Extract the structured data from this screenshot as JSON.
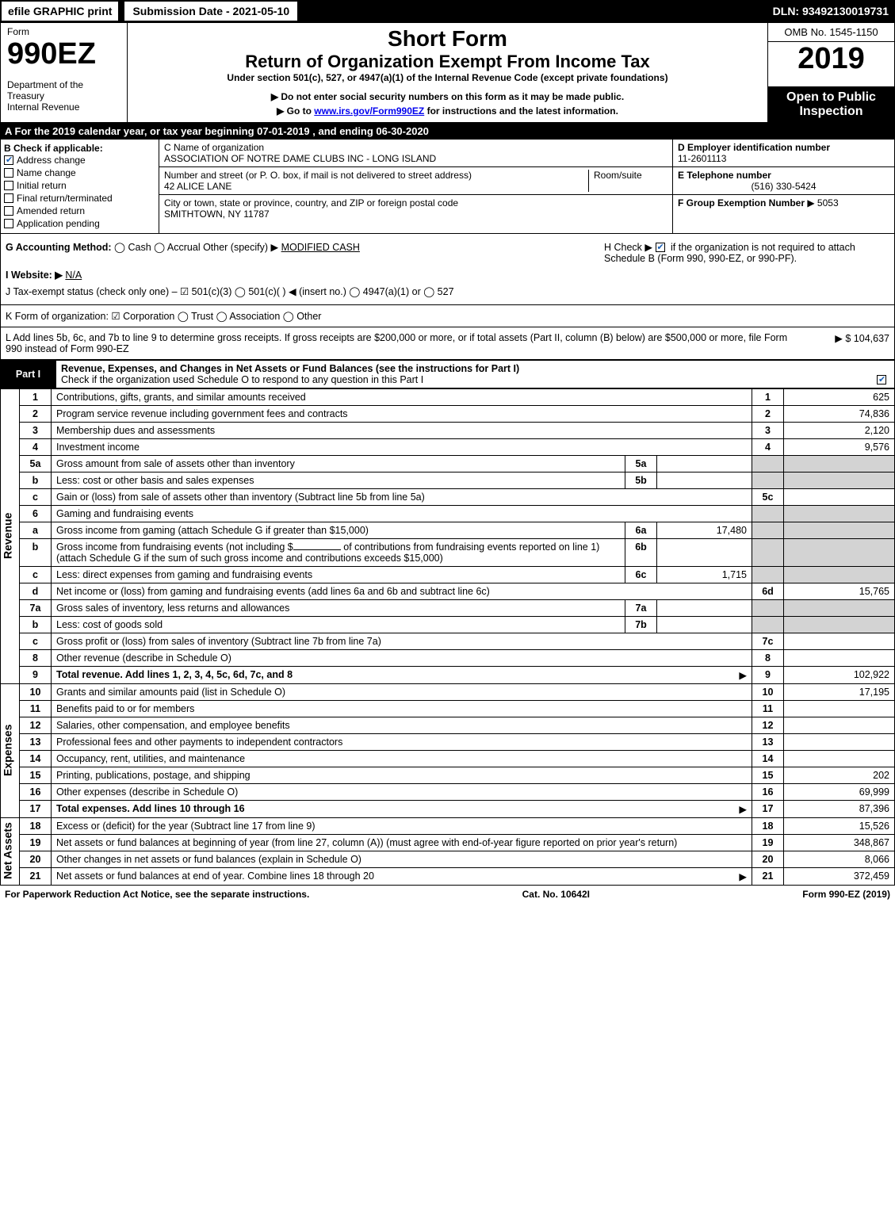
{
  "topbar": {
    "efile": "efile GRAPHIC print",
    "submission": "Submission Date - 2021-05-10",
    "dln": "DLN: 93492130019731"
  },
  "header": {
    "form_label": "Form",
    "form_number": "990EZ",
    "dept": "Department of the Treasury",
    "irs": "Internal Revenue",
    "short_form": "Short Form",
    "return_title": "Return of Organization Exempt From Income Tax",
    "under_section": "Under section 501(c), 527, or 4947(a)(1) of the Internal Revenue Code (except private foundations)",
    "instruction1": "▶ Do not enter social security numbers on this form as it may be made public.",
    "instruction2_pre": "▶ Go to ",
    "instruction2_link": "www.irs.gov/Form990EZ",
    "instruction2_post": " for instructions and the latest information.",
    "omb": "OMB No. 1545-1150",
    "year": "2019",
    "open_public": "Open to Public Inspection"
  },
  "A": "A For the 2019 calendar year, or tax year beginning 07-01-2019 , and ending 06-30-2020",
  "B": {
    "title": "B  Check if applicable:",
    "address_change": "Address change",
    "name_change": "Name change",
    "initial_return": "Initial return",
    "final_return": "Final return/terminated",
    "amended_return": "Amended return",
    "application_pending": "Application pending"
  },
  "C": {
    "name_label": "C Name of organization",
    "name": "ASSOCIATION OF NOTRE DAME CLUBS INC - LONG ISLAND",
    "street_label": "Number and street (or P. O. box, if mail is not delivered to street address)",
    "street": "42 ALICE LANE",
    "room_label": "Room/suite",
    "city_label": "City or town, state or province, country, and ZIP or foreign postal code",
    "city": "SMITHTOWN, NY  11787"
  },
  "D": {
    "label": "D Employer identification number",
    "value": "11-2601113"
  },
  "E": {
    "label": "E Telephone number",
    "value": "(516) 330-5424"
  },
  "F": {
    "label": "F Group Exemption Number",
    "value": "▶ 5053"
  },
  "G": {
    "label": "G Accounting Method:",
    "opts": "◯ Cash   ◯ Accrual   Other (specify) ▶",
    "value": "MODIFIED CASH"
  },
  "H": {
    "text1": "H  Check ▶",
    "text2": "if the organization is not required to attach Schedule B (Form 990, 990-EZ, or 990-PF)."
  },
  "I": {
    "label": "I Website: ▶",
    "value": "N/A"
  },
  "J": "J Tax-exempt status (check only one) – ☑ 501(c)(3) ◯ 501(c)( ) ◀ (insert no.) ◯ 4947(a)(1) or ◯ 527",
  "K": "K Form of organization:   ☑ Corporation   ◯ Trust   ◯ Association   ◯ Other",
  "L": {
    "text": "L Add lines 5b, 6c, and 7b to line 9 to determine gross receipts. If gross receipts are $200,000 or more, or if total assets (Part II, column (B) below) are $500,000 or more, file Form 990 instead of Form 990-EZ",
    "value": "▶ $ 104,637"
  },
  "part1": {
    "label": "Part I",
    "title": "Revenue, Expenses, and Changes in Net Assets or Fund Balances (see the instructions for Part I)",
    "check": "Check if the organization used Schedule O to respond to any question in this Part I"
  },
  "sections": {
    "revenue": "Revenue",
    "expenses": "Expenses",
    "netassets": "Net Assets"
  },
  "lines": {
    "1": {
      "desc": "Contributions, gifts, grants, and similar amounts received",
      "ref": "1",
      "val": "625"
    },
    "2": {
      "desc": "Program service revenue including government fees and contracts",
      "ref": "2",
      "val": "74,836"
    },
    "3": {
      "desc": "Membership dues and assessments",
      "ref": "3",
      "val": "2,120"
    },
    "4": {
      "desc": "Investment income",
      "ref": "4",
      "val": "9,576"
    },
    "5a": {
      "desc": "Gross amount from sale of assets other than inventory",
      "innerref": "5a",
      "innerval": ""
    },
    "5b": {
      "desc": "Less: cost or other basis and sales expenses",
      "innerref": "5b",
      "innerval": ""
    },
    "5c": {
      "desc": "Gain or (loss) from sale of assets other than inventory (Subtract line 5b from line 5a)",
      "ref": "5c",
      "val": ""
    },
    "6": {
      "desc": "Gaming and fundraising events"
    },
    "6a": {
      "desc": "Gross income from gaming (attach Schedule G if greater than $15,000)",
      "innerref": "6a",
      "innerval": "17,480"
    },
    "6b": {
      "desc_pre": "Gross income from fundraising events (not including $",
      "desc_mid": "of contributions from fundraising events reported on line 1) (attach Schedule G if the sum of such gross income and contributions exceeds $15,000)",
      "innerref": "6b",
      "innerval": ""
    },
    "6c": {
      "desc": "Less: direct expenses from gaming and fundraising events",
      "innerref": "6c",
      "innerval": "1,715"
    },
    "6d": {
      "desc": "Net income or (loss) from gaming and fundraising events (add lines 6a and 6b and subtract line 6c)",
      "ref": "6d",
      "val": "15,765"
    },
    "7a": {
      "desc": "Gross sales of inventory, less returns and allowances",
      "innerref": "7a",
      "innerval": ""
    },
    "7b": {
      "desc": "Less: cost of goods sold",
      "innerref": "7b",
      "innerval": ""
    },
    "7c": {
      "desc": "Gross profit or (loss) from sales of inventory (Subtract line 7b from line 7a)",
      "ref": "7c",
      "val": ""
    },
    "8": {
      "desc": "Other revenue (describe in Schedule O)",
      "ref": "8",
      "val": ""
    },
    "9": {
      "desc": "Total revenue. Add lines 1, 2, 3, 4, 5c, 6d, 7c, and 8",
      "ref": "9",
      "val": "102,922",
      "arrow": "▶"
    },
    "10": {
      "desc": "Grants and similar amounts paid (list in Schedule O)",
      "ref": "10",
      "val": "17,195"
    },
    "11": {
      "desc": "Benefits paid to or for members",
      "ref": "11",
      "val": ""
    },
    "12": {
      "desc": "Salaries, other compensation, and employee benefits",
      "ref": "12",
      "val": ""
    },
    "13": {
      "desc": "Professional fees and other payments to independent contractors",
      "ref": "13",
      "val": ""
    },
    "14": {
      "desc": "Occupancy, rent, utilities, and maintenance",
      "ref": "14",
      "val": ""
    },
    "15": {
      "desc": "Printing, publications, postage, and shipping",
      "ref": "15",
      "val": "202"
    },
    "16": {
      "desc": "Other expenses (describe in Schedule O)",
      "ref": "16",
      "val": "69,999"
    },
    "17": {
      "desc": "Total expenses. Add lines 10 through 16",
      "ref": "17",
      "val": "87,396",
      "arrow": "▶"
    },
    "18": {
      "desc": "Excess or (deficit) for the year (Subtract line 17 from line 9)",
      "ref": "18",
      "val": "15,526"
    },
    "19": {
      "desc": "Net assets or fund balances at beginning of year (from line 27, column (A)) (must agree with end-of-year figure reported on prior year's return)",
      "ref": "19",
      "val": "348,867"
    },
    "20": {
      "desc": "Other changes in net assets or fund balances (explain in Schedule O)",
      "ref": "20",
      "val": "8,066"
    },
    "21": {
      "desc": "Net assets or fund balances at end of year. Combine lines 18 through 20",
      "ref": "21",
      "val": "372,459",
      "arrow": "▶"
    }
  },
  "footer": {
    "left": "For Paperwork Reduction Act Notice, see the separate instructions.",
    "mid": "Cat. No. 10642I",
    "right": "Form 990-EZ (2019)"
  }
}
